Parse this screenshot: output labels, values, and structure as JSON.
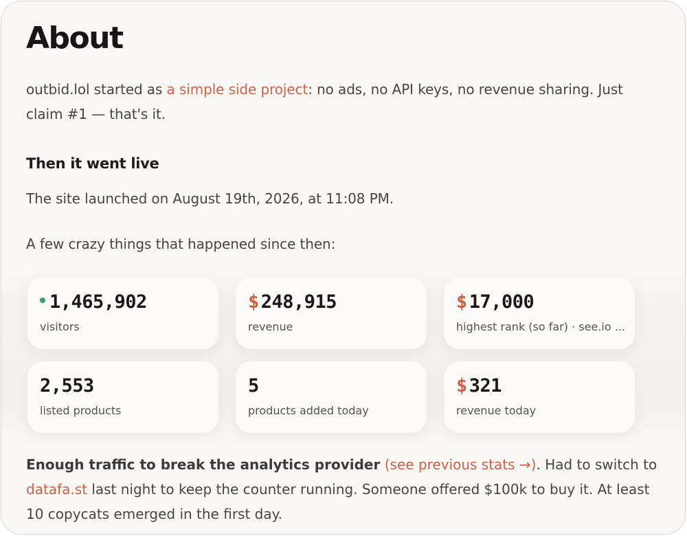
{
  "title": "About",
  "intro": {
    "prefix": "outbid.lol started as ",
    "link": "a simple side project",
    "rest": ": no ads, no API keys, no revenue sharing. Just claim #1 — that's it."
  },
  "section_heading": "Then it went live",
  "launch_text": "The site launched on August 19th, 2026, at 11:08 PM.",
  "lead_in": "A few crazy things that happened since then:",
  "stats": [
    {
      "value": "1,465,902",
      "label": "visitors",
      "prefix": "",
      "live_dot": true
    },
    {
      "value": "248,915",
      "label": "revenue",
      "prefix": "$"
    },
    {
      "value": "17,000",
      "label": "highest rank (so far) · see.io ...",
      "prefix": "$"
    },
    {
      "value": "2,553",
      "label": "listed products",
      "prefix": ""
    },
    {
      "value": "5",
      "label": "products added today",
      "prefix": ""
    },
    {
      "value": "321",
      "label": "revenue today",
      "prefix": "$"
    }
  ],
  "footer": {
    "bold": "Enough traffic to break the analytics provider",
    "link1": "(see previous stats →)",
    "text1": ". Had to switch to ",
    "link2": "datafa.st",
    "text2": " last night to keep the counter running. Someone offered $100k to buy it. At least 10 copycats emerged in the first day."
  },
  "colors": {
    "accent": "#d15f43",
    "live": "#3aa36a"
  }
}
